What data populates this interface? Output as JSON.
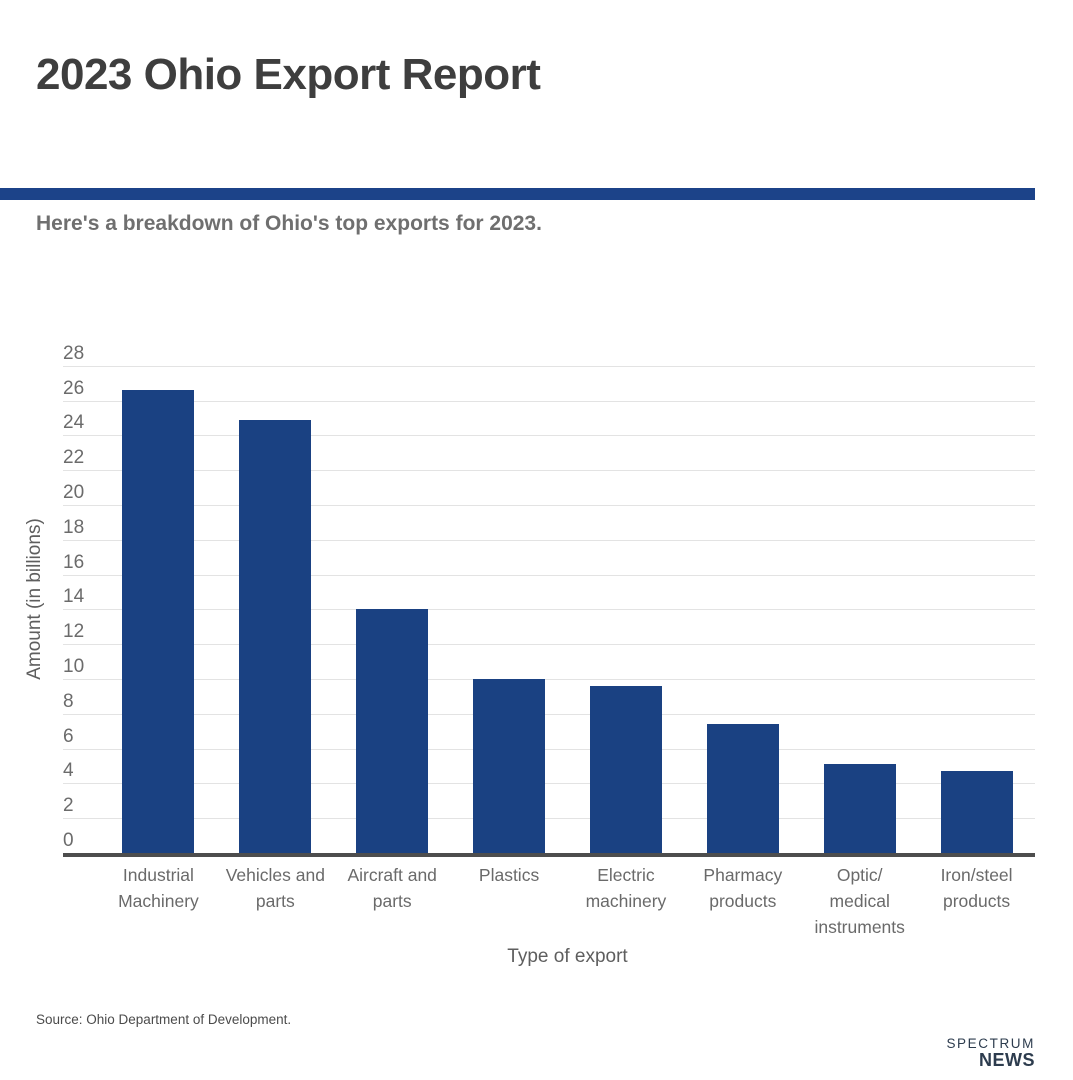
{
  "header": {
    "title": "2023 Ohio Export Report",
    "subtitle": "Here's a breakdown of Ohio's top exports for 2023."
  },
  "footer": {
    "source": "Source: Ohio Department of Development.",
    "logo_line1": "SPECTRUM",
    "logo_line2": "NEWS"
  },
  "colors": {
    "bar": "#1a4182",
    "divider": "#1c4389",
    "gridline": "#e3e3e3",
    "axis_line": "#4d4d4d"
  },
  "chart_data": {
    "type": "bar",
    "title": "2023 Ohio Export Report",
    "subtitle": "Here's a breakdown of Ohio's top exports for 2023.",
    "categories": [
      "Industrial\nMachinery",
      "Vehicles and\nparts",
      "Aircraft and\nparts",
      "Plastics",
      "Electric\nmachinery",
      "Pharmacy\nproducts",
      "Optic/\nmedical\ninstruments",
      "Iron/steel\nproducts"
    ],
    "values": [
      26.6,
      24.9,
      14.0,
      10.0,
      9.6,
      7.4,
      5.1,
      4.7
    ],
    "xlabel": "Type of export",
    "ylabel": "Amount (in billions)",
    "ylim": [
      0,
      28
    ],
    "ytick_step": 2,
    "yticks": [
      0,
      2,
      4,
      6,
      8,
      10,
      12,
      14,
      16,
      18,
      20,
      22,
      24,
      26,
      28
    ],
    "grid": "horizontal",
    "legend_position": "none",
    "bar_color": "#1a4182"
  }
}
